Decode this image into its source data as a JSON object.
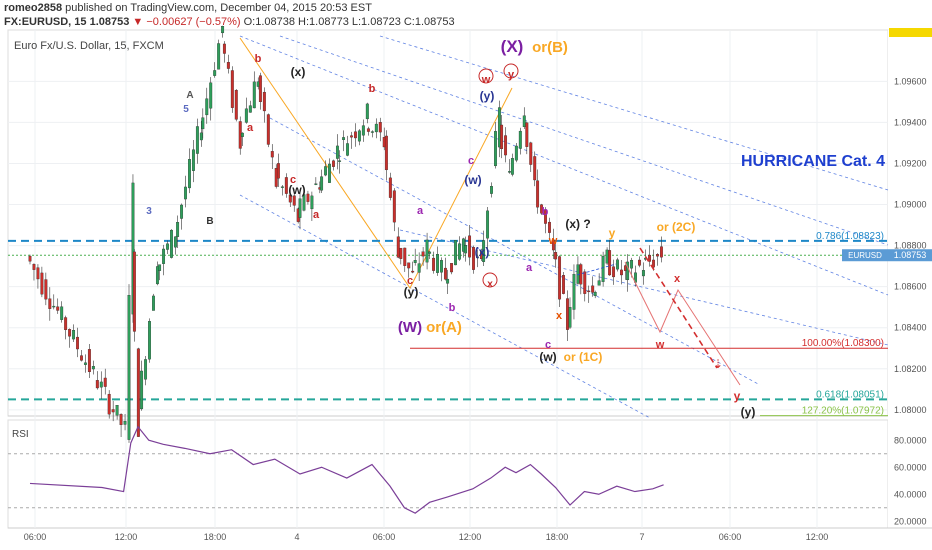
{
  "header": {
    "user": "romeo2858",
    "published": "published on TradingView.com, December 04, 2015 20:53 EST",
    "symbol": "FX:EURUSD, 15",
    "last": "1.08753",
    "change": "−0.00627 (−0.57%)",
    "ohlc": "O:1.08738 H:1.08773 L:1.08723 C:1.08753"
  },
  "chart_data": {
    "type": "candlestick",
    "title": "Euro Fx/U.S. Dollar, 15, FXCM",
    "x_ticks": [
      "06:00",
      "12:00",
      "18:00",
      "4",
      "06:00",
      "12:00",
      "18:00",
      "7",
      "06:00",
      "12:00"
    ],
    "y_ticks": [
      "1.08000",
      "1.08200",
      "1.08400",
      "1.08600",
      "1.08800",
      "1.09000",
      "1.09200",
      "1.09400",
      "1.09600"
    ],
    "ylim": [
      1.0797,
      1.0985
    ],
    "price_path": [
      {
        "t": 0,
        "p": 1.0875
      },
      {
        "t": 55,
        "p": 1.079
      },
      {
        "t": 58,
        "p": 1.0875
      },
      {
        "t": 62,
        "p": 1.08
      },
      {
        "t": 72,
        "p": 1.0868
      },
      {
        "t": 82,
        "p": 1.0885
      },
      {
        "t": 96,
        "p": 1.0935
      },
      {
        "t": 108,
        "p": 1.0982
      },
      {
        "t": 118,
        "p": 1.0935
      },
      {
        "t": 128,
        "p": 1.096
      },
      {
        "t": 138,
        "p": 1.0915
      },
      {
        "t": 150,
        "p": 1.0895
      },
      {
        "t": 162,
        "p": 1.091
      },
      {
        "t": 172,
        "p": 1.0925
      },
      {
        "t": 188,
        "p": 1.0942
      },
      {
        "t": 198,
        "p": 1.0932
      },
      {
        "t": 206,
        "p": 1.088
      },
      {
        "t": 214,
        "p": 1.0866
      },
      {
        "t": 222,
        "p": 1.0878
      },
      {
        "t": 232,
        "p": 1.0866
      },
      {
        "t": 242,
        "p": 1.0882
      },
      {
        "t": 252,
        "p": 1.087
      },
      {
        "t": 262,
        "p": 1.0938
      },
      {
        "t": 268,
        "p": 1.0915
      },
      {
        "t": 276,
        "p": 1.0945
      },
      {
        "t": 282,
        "p": 1.091
      },
      {
        "t": 292,
        "p": 1.0878
      },
      {
        "t": 300,
        "p": 1.0845
      },
      {
        "t": 306,
        "p": 1.0868
      },
      {
        "t": 314,
        "p": 1.0858
      },
      {
        "t": 322,
        "p": 1.0872
      },
      {
        "t": 332,
        "p": 1.0866
      },
      {
        "t": 342,
        "p": 1.087
      },
      {
        "t": 352,
        "p": 1.0875
      }
    ],
    "horizontal_lines": [
      {
        "label": "0.786(1.08823)",
        "value": 1.08823,
        "color": "#1e88c8",
        "style": "dashed"
      },
      {
        "label": "100.00%(1.08300)",
        "value": 1.083,
        "color": "#d32f2f",
        "style": "solid"
      },
      {
        "label": "0.618(1.08051)",
        "value": 1.08051,
        "color": "#26a69a",
        "style": "dashed"
      },
      {
        "label": "127.20%(1.07972)",
        "value": 1.07972,
        "color": "#8bc34a",
        "style": "solid"
      }
    ],
    "price_badge": {
      "label": "EURUSD",
      "value": "1.08753"
    },
    "annotation": "HURRICANE Cat. 4",
    "wave_labels": [
      {
        "text": "3",
        "color": "#5c6bc0"
      },
      {
        "text": "A",
        "color": "#555"
      },
      {
        "text": "5",
        "color": "#5c6bc0"
      },
      {
        "text": "B",
        "color": "#333"
      },
      {
        "text": "b",
        "color": "#c62828"
      },
      {
        "text": "a",
        "color": "#c62828"
      },
      {
        "text": "(x)",
        "color": "#222"
      },
      {
        "text": "c",
        "color": "#c62828"
      },
      {
        "text": "(w)",
        "color": "#222"
      },
      {
        "text": "a",
        "color": "#c62828"
      },
      {
        "text": "b",
        "color": "#c62828"
      },
      {
        "text": "a",
        "color": "#9c27b0"
      },
      {
        "text": "c",
        "color": "#c62828"
      },
      {
        "text": "(y)",
        "color": "#222"
      },
      {
        "text": "(W)",
        "color": "#7b1fa2"
      },
      {
        "text": "or(A)",
        "color": "#f9a825"
      },
      {
        "text": "b",
        "color": "#9c27b0"
      },
      {
        "text": "c",
        "color": "#9c27b0"
      },
      {
        "text": "(w)",
        "color": "#283593"
      },
      {
        "text": "(x)",
        "color": "#283593"
      },
      {
        "text": "x",
        "color": "#c62828"
      },
      {
        "text": "w",
        "color": "#c62828"
      },
      {
        "text": "y",
        "color": "#c62828"
      },
      {
        "text": "(y)",
        "color": "#283593"
      },
      {
        "text": "(X)",
        "color": "#7b1fa2"
      },
      {
        "text": "or(B)",
        "color": "#f9a825"
      },
      {
        "text": "b",
        "color": "#9c27b0"
      },
      {
        "text": "w",
        "color": "#e65100"
      },
      {
        "text": "a",
        "color": "#9c27b0"
      },
      {
        "text": "x",
        "color": "#e65100"
      },
      {
        "text": "c",
        "color": "#9c27b0"
      },
      {
        "text": "(w)",
        "color": "#222"
      },
      {
        "text": "or (1C)",
        "color": "#f9a825"
      },
      {
        "text": "(x) ?",
        "color": "#222"
      },
      {
        "text": "y",
        "color": "#f9a825"
      },
      {
        "text": "or (2C)",
        "color": "#f9a825"
      },
      {
        "text": "x",
        "color": "#d32f2f"
      },
      {
        "text": "w",
        "color": "#d32f2f"
      },
      {
        "text": "y",
        "color": "#d32f2f"
      },
      {
        "text": "(y)",
        "color": "#222"
      }
    ],
    "rsi": {
      "label": "RSI",
      "y_ticks": [
        "80.0000",
        "60.0000",
        "40.0000",
        "20.0000"
      ],
      "ylim": [
        15,
        95
      ],
      "guide_levels": [
        70,
        30
      ],
      "values": [
        {
          "t": 0,
          "v": 48
        },
        {
          "t": 40,
          "v": 45
        },
        {
          "t": 52,
          "v": 42
        },
        {
          "t": 56,
          "v": 78
        },
        {
          "t": 60,
          "v": 90
        },
        {
          "t": 66,
          "v": 80
        },
        {
          "t": 74,
          "v": 77
        },
        {
          "t": 86,
          "v": 74
        },
        {
          "t": 100,
          "v": 70
        },
        {
          "t": 112,
          "v": 73
        },
        {
          "t": 124,
          "v": 62
        },
        {
          "t": 136,
          "v": 66
        },
        {
          "t": 150,
          "v": 55
        },
        {
          "t": 162,
          "v": 60
        },
        {
          "t": 176,
          "v": 52
        },
        {
          "t": 190,
          "v": 62
        },
        {
          "t": 200,
          "v": 46
        },
        {
          "t": 208,
          "v": 30
        },
        {
          "t": 214,
          "v": 26
        },
        {
          "t": 222,
          "v": 34
        },
        {
          "t": 232,
          "v": 38
        },
        {
          "t": 246,
          "v": 44
        },
        {
          "t": 256,
          "v": 52
        },
        {
          "t": 264,
          "v": 60
        },
        {
          "t": 270,
          "v": 56
        },
        {
          "t": 278,
          "v": 62
        },
        {
          "t": 284,
          "v": 55
        },
        {
          "t": 292,
          "v": 45
        },
        {
          "t": 300,
          "v": 32
        },
        {
          "t": 308,
          "v": 42
        },
        {
          "t": 316,
          "v": 40
        },
        {
          "t": 326,
          "v": 46
        },
        {
          "t": 336,
          "v": 42
        },
        {
          "t": 346,
          "v": 44
        },
        {
          "t": 352,
          "v": 47
        }
      ]
    }
  }
}
